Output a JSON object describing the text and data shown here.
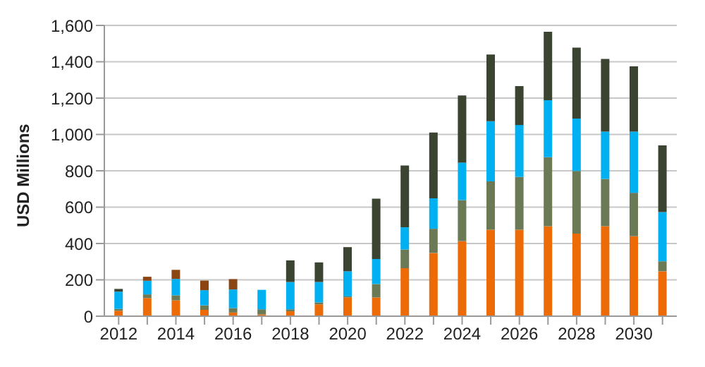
{
  "chart_data": {
    "type": "bar",
    "stacked": true,
    "ylabel": "USD Millions",
    "categories": [
      "2012",
      null,
      "2014",
      null,
      "2016",
      null,
      "2018",
      null,
      "2020",
      null,
      "2022",
      null,
      "2024",
      null,
      "2026",
      null,
      "2028",
      null,
      "2030",
      null
    ],
    "series": [
      {
        "color": "#ed6b06",
        "values": [
          30,
          100,
          87,
          35,
          20,
          10,
          27,
          65,
          103,
          103,
          264,
          348,
          413,
          476,
          476,
          495,
          454,
          495,
          440,
          247
        ]
      },
      {
        "color": "#6b7a55",
        "values": [
          10,
          20,
          28,
          25,
          25,
          28,
          11,
          11,
          6,
          74,
          103,
          133,
          226,
          266,
          290,
          380,
          345,
          260,
          239,
          55
        ]
      },
      {
        "color": "#00b0f0",
        "values": [
          95,
          75,
          90,
          83,
          102,
          107,
          150,
          112,
          138,
          138,
          122,
          168,
          206,
          331,
          286,
          313,
          288,
          261,
          337,
          271
        ]
      },
      {
        "color": "#3b4430",
        "values": [
          15,
          null,
          null,
          null,
          null,
          null,
          119,
          108,
          133,
          332,
          340,
          362,
          370,
          367,
          214,
          377,
          391,
          400,
          359,
          367
        ]
      },
      {
        "color": "#8b4513",
        "values": [
          null,
          22,
          50,
          53,
          57,
          null,
          null,
          null,
          null,
          null,
          null,
          null,
          null,
          null,
          null,
          null,
          null,
          null,
          null,
          null
        ]
      }
    ],
    "ylim": [
      0,
      1600
    ],
    "yticks": [
      {
        "value": 0,
        "label": "0"
      },
      {
        "value": 200,
        "label": "200"
      },
      {
        "value": 400,
        "label": "400"
      },
      {
        "value": 600,
        "label": "600"
      },
      {
        "value": 800,
        "label": "800"
      },
      {
        "value": 1000,
        "label": "1,000"
      },
      {
        "value": 1200,
        "label": "1,200"
      },
      {
        "value": 1400,
        "label": "1,400"
      },
      {
        "value": 1600,
        "label": "1,600"
      }
    ],
    "grid": "y",
    "legend": false
  }
}
